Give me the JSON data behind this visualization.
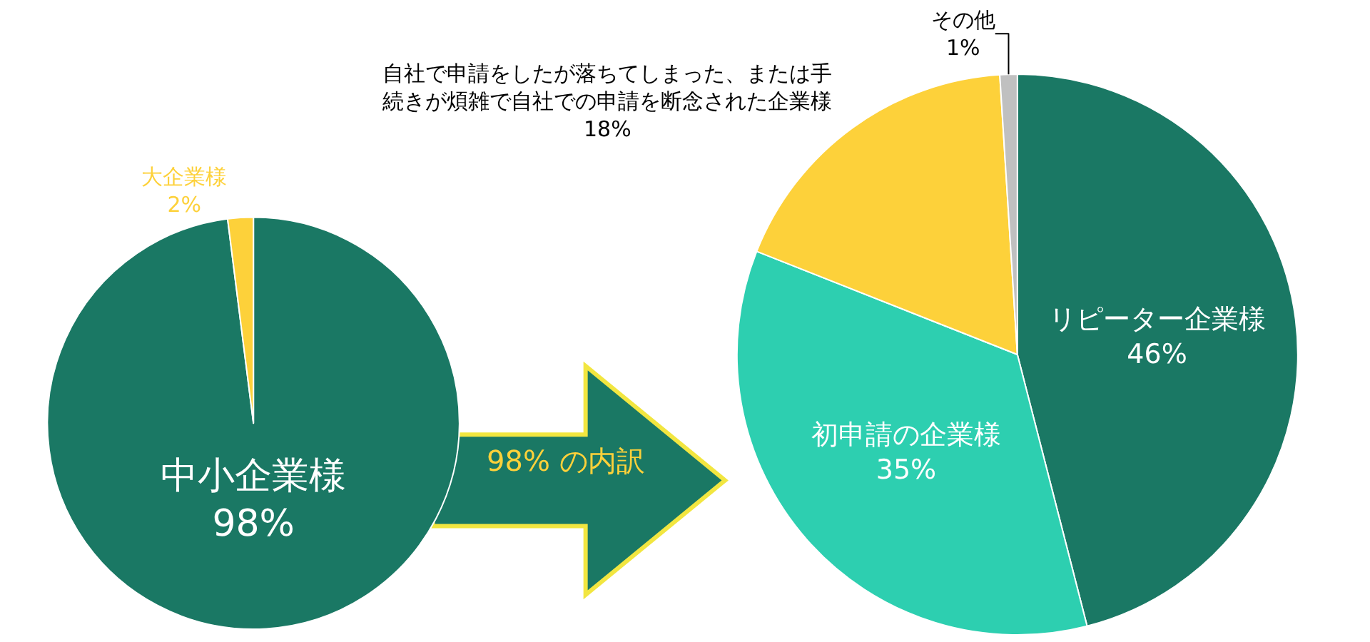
{
  "chart_data": [
    {
      "type": "pie",
      "categories": [
        "中小企業様",
        "大企業様"
      ],
      "values": [
        98,
        2
      ],
      "colors": [
        "#1a7864",
        "#fdd13a"
      ],
      "value_labels": [
        "98%",
        "2%"
      ],
      "annotations": [
        "98% の内訳"
      ]
    },
    {
      "type": "pie",
      "categories": [
        "リピーター企業様",
        "初申請の企業様",
        "自社で申請をしたが落ちてしまった、または手続きが煩雑で自社での申請を断念された企業様",
        "その他"
      ],
      "values": [
        46,
        35,
        18,
        1
      ],
      "colors": [
        "#1a7864",
        "#2dcfb0",
        "#fdd13a",
        "#c0c0c0"
      ],
      "value_labels": [
        "46%",
        "35%",
        "18%",
        "1%"
      ]
    }
  ]
}
